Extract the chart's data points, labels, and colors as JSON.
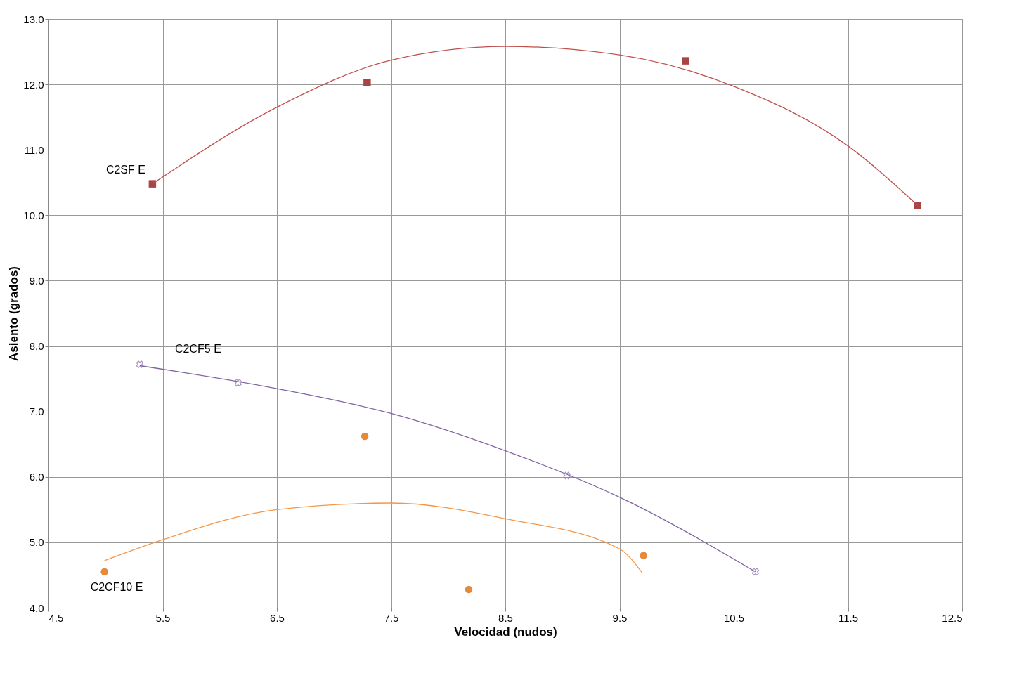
{
  "chart_data": {
    "type": "scatter",
    "xlabel": "Velocidad (nudos)",
    "ylabel": "Asiento (grados)",
    "xlim": [
      4.5,
      12.5
    ],
    "xticks": [
      4.5,
      5.5,
      6.5,
      7.5,
      8.5,
      9.5,
      10.5,
      11.5,
      12.5
    ],
    "ylim": [
      4.0,
      13.0
    ],
    "yticks": [
      {
        "value": 4,
        "label": "4.0"
      },
      {
        "value": 5,
        "label": "5.0"
      },
      {
        "value": 6,
        "label": "6.0"
      },
      {
        "value": 7,
        "label": "7.0"
      },
      {
        "value": 8,
        "label": "8.0"
      },
      {
        "value": 9,
        "label": "9.0"
      },
      {
        "value": 10,
        "label": "10.0"
      },
      {
        "value": 11,
        "label": "11.0"
      },
      {
        "value": 12,
        "label": "12.0"
      },
      {
        "value": 13,
        "label": "13.0"
      }
    ],
    "grid": true,
    "series": [
      {
        "name": "C2SF E",
        "marker": "square",
        "color": "#a94444",
        "x": [
          5.41,
          7.29,
          10.08,
          12.11
        ],
        "values": [
          10.48,
          12.03,
          12.36,
          10.15
        ]
      },
      {
        "name": "C2CF5 E",
        "marker": "cross",
        "color": "#7f6aa8",
        "x": [
          5.3,
          6.16,
          9.04,
          10.69
        ],
        "values": [
          7.72,
          7.44,
          6.02,
          4.55
        ]
      },
      {
        "name": "C2CF10 E",
        "marker": "circle",
        "color": "#e8893a",
        "x": [
          4.99,
          7.27,
          8.18,
          9.71
        ],
        "values": [
          4.55,
          6.62,
          4.28,
          4.8
        ]
      },
      {
        "type": "line",
        "marker": "none",
        "color": "#c0504d",
        "x": [
          5.41,
          6.5,
          7.5,
          8.5,
          9.5,
          10.5,
          11.5,
          12.11
        ],
        "values": [
          10.48,
          11.65,
          12.37,
          12.58,
          12.45,
          11.97,
          11.06,
          10.15
        ]
      },
      {
        "type": "line",
        "marker": "none",
        "color": "#8064a2",
        "x": [
          5.3,
          6.5,
          7.5,
          8.5,
          9.5,
          10.69
        ],
        "values": [
          7.7,
          7.35,
          6.97,
          6.4,
          5.69,
          4.55
        ]
      },
      {
        "type": "line",
        "marker": "none",
        "color": "#f79646",
        "x": [
          4.99,
          5.5,
          6.5,
          7.5,
          8.5,
          9.5,
          9.7
        ],
        "values": [
          4.72,
          5.04,
          5.5,
          5.6,
          5.36,
          4.9,
          4.53
        ]
      }
    ]
  }
}
